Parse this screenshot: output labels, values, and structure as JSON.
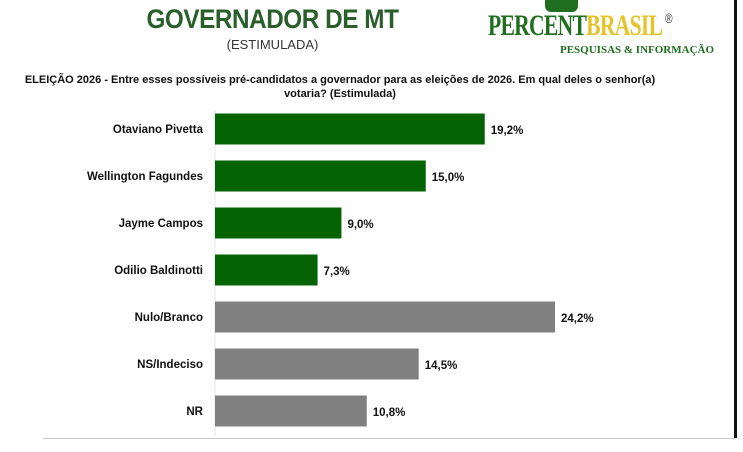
{
  "header": {
    "title": "GOVERNADOR DE MT",
    "subtitle": "(ESTIMULADA)"
  },
  "logo": {
    "brand_part1": "PERCENT",
    "brand_part2": "BRASIL",
    "registered": "®",
    "tagline": "PESQUISAS & INFORMAÇÃO",
    "colors": {
      "green": "#1f6e1f",
      "yellow": "#e4c42a"
    }
  },
  "chart_data": {
    "type": "bar",
    "orientation": "horizontal",
    "title": "ELEIÇÃO 2026 - Entre esses possíveis pré-candidatos a governador para as eleições de 2026. Em qual deles o senhor(a) votaria? (Estimulada)",
    "categories": [
      "Otaviano Pivetta",
      "Wellington Fagundes",
      "Jayme Campos",
      "Odilio Baldinotti",
      "Nulo/Branco",
      "NS/Indeciso",
      "NR"
    ],
    "values": [
      19.2,
      15.0,
      9.0,
      7.3,
      24.2,
      14.5,
      10.8
    ],
    "data_labels": [
      "19,2%",
      "15,0%",
      "9,0%",
      "7,3%",
      "24,2%",
      "14,5%",
      "10,8%"
    ],
    "bar_colors": [
      "#046404",
      "#046404",
      "#046404",
      "#046404",
      "#808080",
      "#808080",
      "#808080"
    ],
    "unit": "%",
    "grid": false,
    "legend": "none"
  }
}
